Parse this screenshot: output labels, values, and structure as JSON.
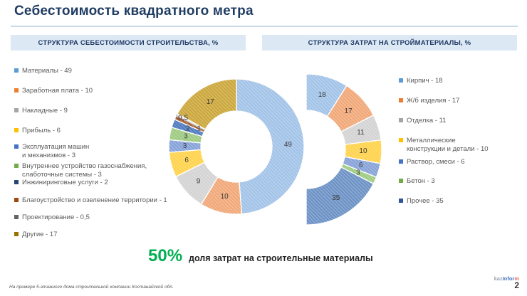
{
  "slide": {
    "title": "Себестоимость квадратного метра",
    "footnote": "На примере 5-этажного дома строительной компании Костанайской обл.",
    "page_number": "2",
    "logo": {
      "part1": "kaz",
      "part2": "Infor",
      "part3": "m"
    },
    "highlight": {
      "percent": "50%",
      "text": "доля затрат на строительные материалы",
      "color": "#00B050"
    },
    "colors": {
      "header_bg": "#DCE9F5",
      "header_text": "#1F3864",
      "title_text": "#1F3C63"
    }
  },
  "chart_data": [
    {
      "type": "pie",
      "variant": "donut",
      "title": "СТРУКТУРА СЕБЕСТОИМОСТИ СТРОИТЕЛЬСТВА, %",
      "unit": "%",
      "legend_position": "left",
      "slices": [
        {
          "label": "Материалы",
          "value": 49,
          "display": "49",
          "fill": "#A3C4E8",
          "legend": "#5B9BD5"
        },
        {
          "label": "Заработная плата",
          "value": 10,
          "display": "10",
          "fill": "#F1A97A",
          "legend": "#ED7D31"
        },
        {
          "label": "Накладные",
          "value": 9,
          "display": "9",
          "fill": "#D4D4D4",
          "legend": "#A5A5A5"
        },
        {
          "label": "Прибыль",
          "value": 6,
          "display": "6",
          "fill": "#FFD34D",
          "legend": "#FFC000"
        },
        {
          "label": "Эксплуатация машин\nи механизмов",
          "value": 3,
          "display": "3",
          "fill": "#87A3D8",
          "legend": "#4472C4"
        },
        {
          "label": "Внутреннее устройство газоснабжения,\nслаботочные системы",
          "value": 3,
          "display": "3",
          "fill": "#9FCB82",
          "legend": "#70AD47"
        },
        {
          "label": "Инжиниринговые услуги",
          "value": 2,
          "display": "2",
          "fill": "#4F7BC0",
          "legend": "#264478"
        },
        {
          "label": "Благоустройство и озеленение территории",
          "value": 1,
          "display": "1",
          "fill": "#A66036",
          "legend": "#9E480E"
        },
        {
          "label": "Проектирование",
          "value": 0.5,
          "display": "0,5",
          "fill": "#EDEDED",
          "legend": "#636363"
        },
        {
          "label": "Другие",
          "value": 17,
          "display": "17",
          "fill": "#CCA83E",
          "legend": "#997300"
        }
      ]
    },
    {
      "type": "pie",
      "variant": "half-donut",
      "title": "СТРУКТУРА ЗАТРАТ НА СТРОЙМАТЕРИАЛЫ, %",
      "unit": "%",
      "legend_position": "right",
      "slices": [
        {
          "label": "Кирпич",
          "value": 18,
          "display": "18",
          "fill": "#A3C4E8",
          "legend": "#5B9BD5"
        },
        {
          "label": "Ж/б изделия",
          "value": 17,
          "display": "17",
          "fill": "#F1A97A",
          "legend": "#ED7D31"
        },
        {
          "label": "Отделка",
          "value": 11,
          "display": "11",
          "fill": "#D4D4D4",
          "legend": "#A5A5A5"
        },
        {
          "label": "Металлические\nконструкции и детали",
          "value": 10,
          "display": "10",
          "fill": "#FFD34D",
          "legend": "#FFC000"
        },
        {
          "label": "Раствор, смеси",
          "value": 6,
          "display": "6",
          "fill": "#87A3D8",
          "legend": "#4472C4"
        },
        {
          "label": "Бетон",
          "value": 3,
          "display": "3",
          "fill": "#9FCB82",
          "legend": "#70AD47"
        },
        {
          "label": "Прочее",
          "value": 35,
          "display": "35",
          "fill": "#6E93C6",
          "legend": "#2F5597"
        }
      ]
    }
  ]
}
